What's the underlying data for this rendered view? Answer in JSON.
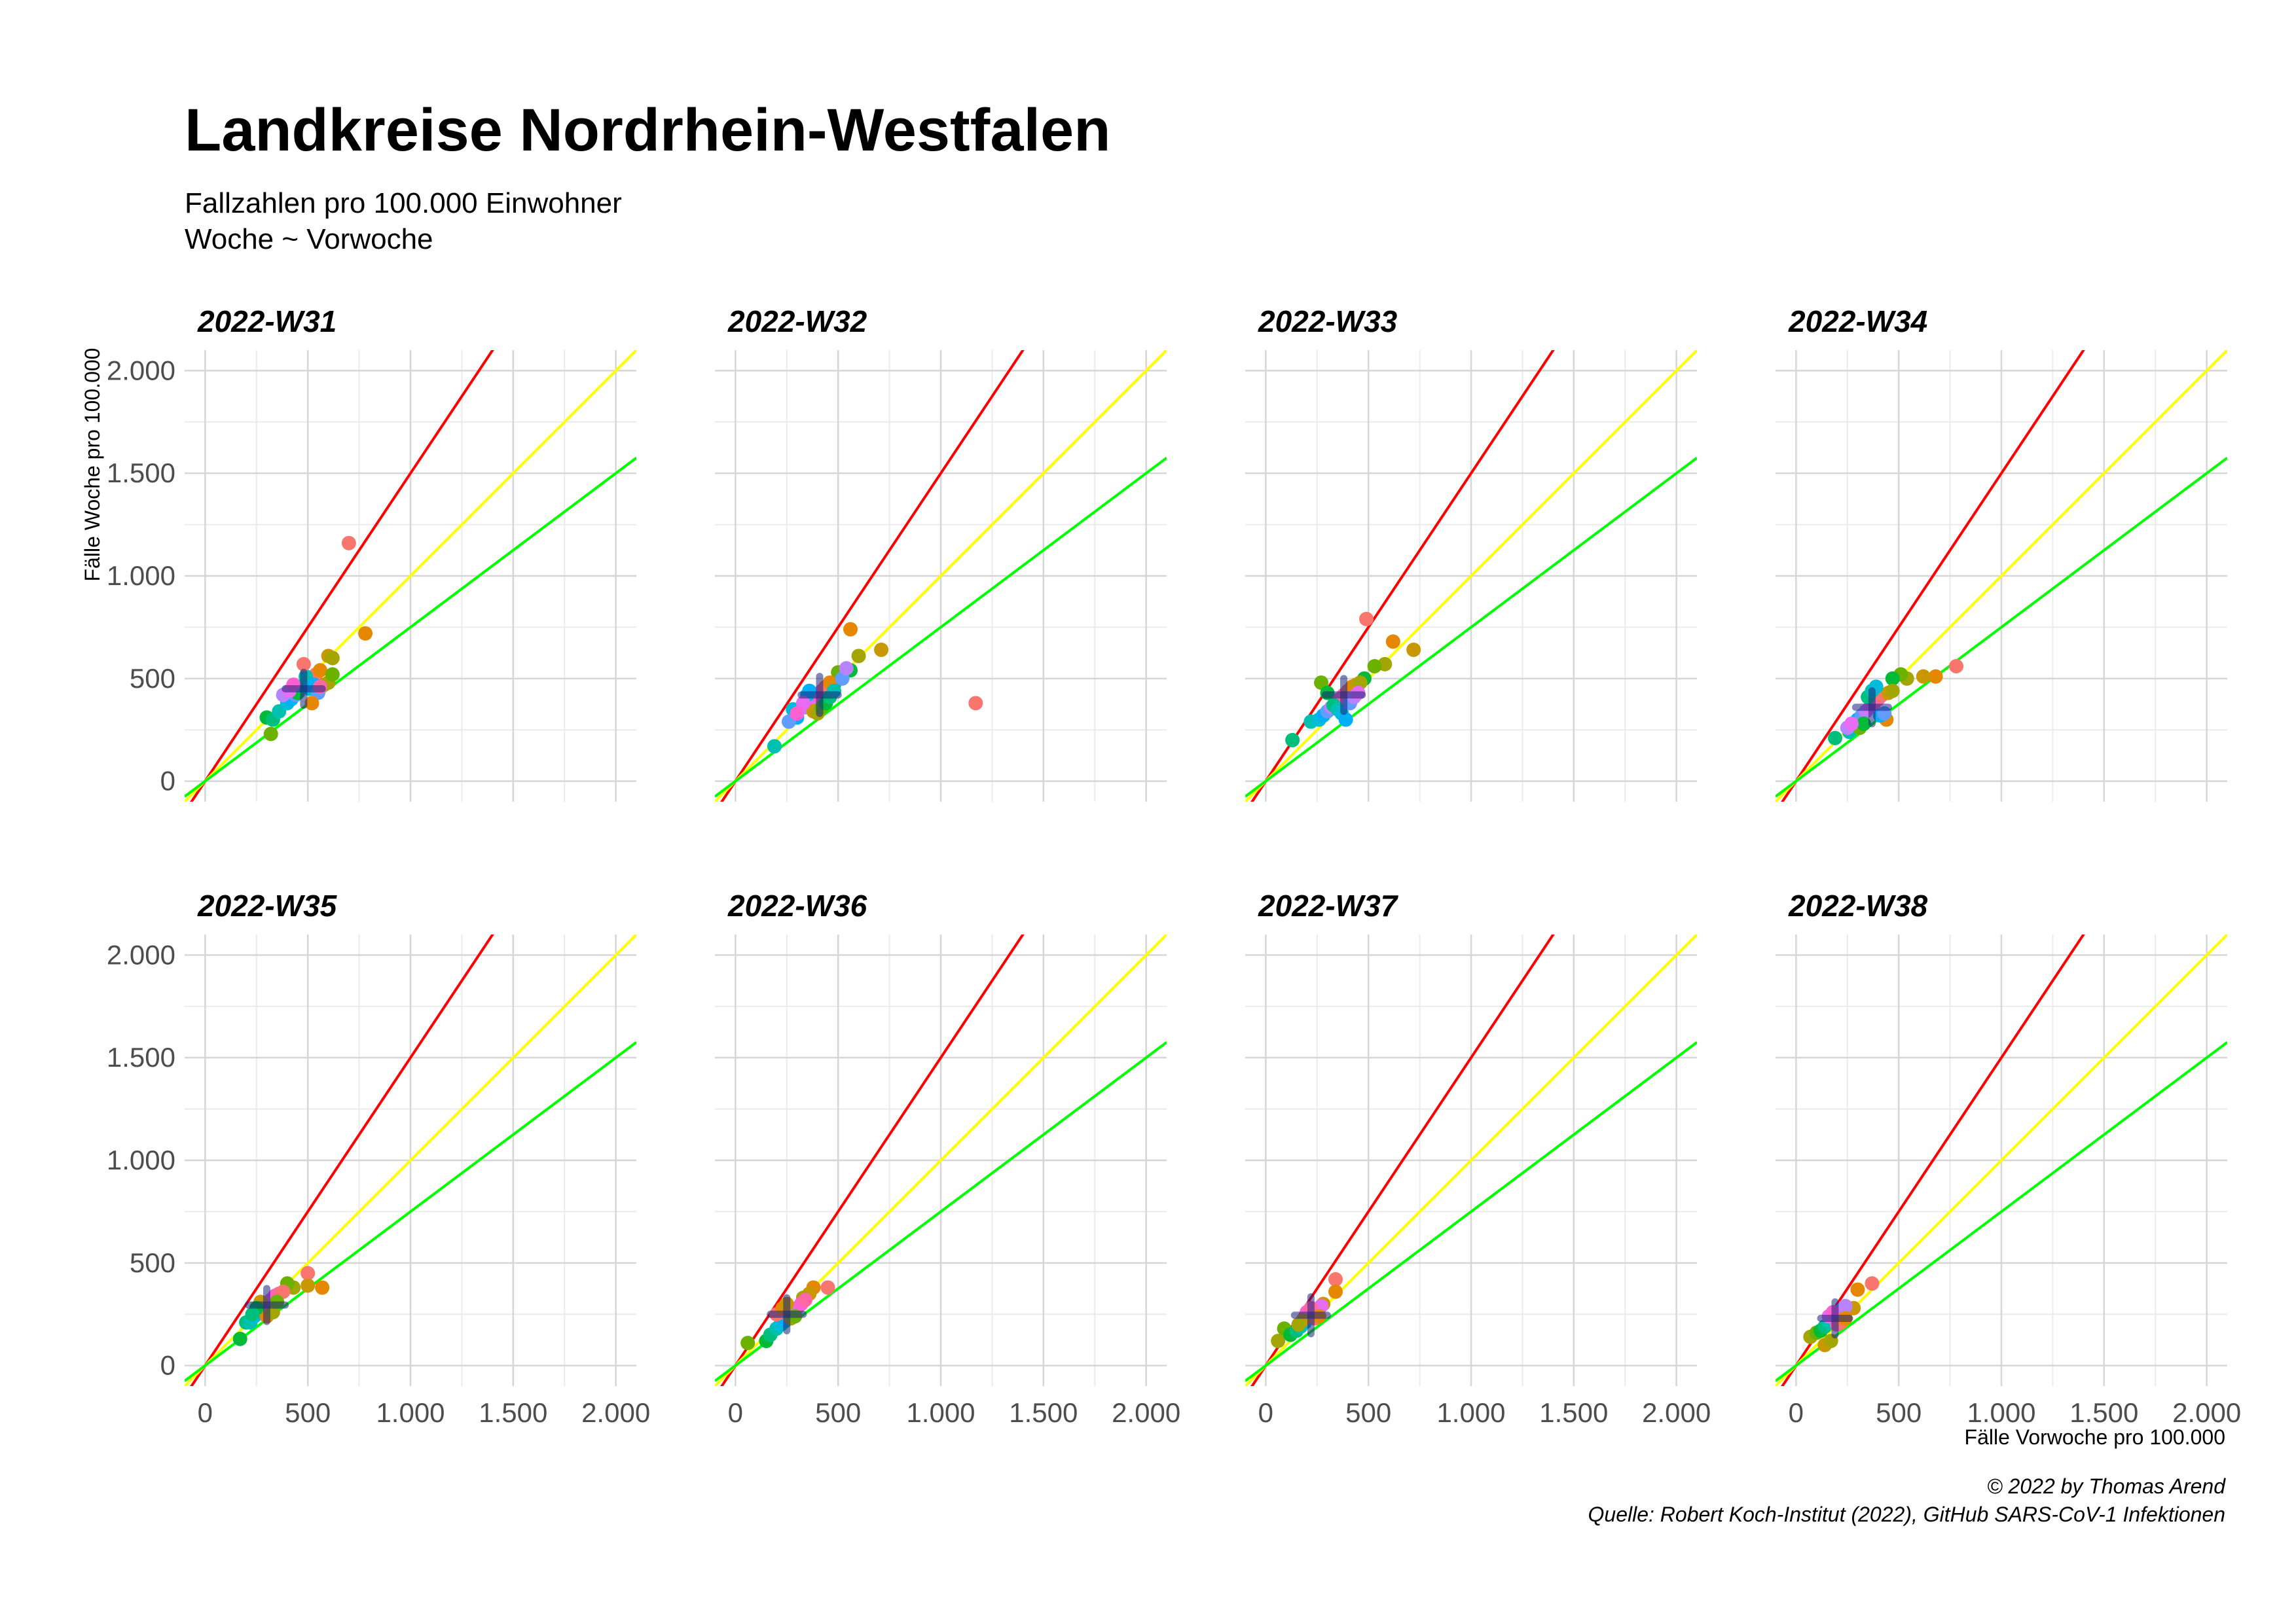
{
  "title": "Landkreise Nordrhein-Westfalen",
  "subtitle_line1": "Fallzahlen pro 100.000 Einwohner",
  "subtitle_line2": "Woche ~ Vorwoche",
  "caption_line1": "© 2022 by Thomas Arend",
  "caption_line2": "Quelle: Robert Koch-Institut (2022), GitHub SARS-CoV-1 Infektionen",
  "chart_data": {
    "type": "scatter",
    "xlabel": "Fälle Vorwoche pro 100.000",
    "ylabel": "Fälle Woche pro 100.000",
    "xlim": [
      -100,
      2100
    ],
    "ylim": [
      -100,
      2100
    ],
    "x_ticks": [
      0,
      500,
      1000,
      1500,
      2000
    ],
    "y_ticks": [
      0,
      500,
      1000,
      1500,
      2000
    ],
    "x_tick_labels": [
      "0",
      "500",
      "1.000",
      "1.500",
      "2.000"
    ],
    "y_tick_labels": [
      "0",
      "500",
      "1.000",
      "1.500",
      "2.000"
    ],
    "grid": true,
    "reference_lines": [
      {
        "slope": 1.5,
        "color": "#ff0000"
      },
      {
        "slope": 1.0,
        "color": "#ffff00"
      },
      {
        "slope": 0.75,
        "color": "#00ff00"
      }
    ],
    "point_colors": [
      "#f8766d",
      "#e58700",
      "#c99800",
      "#a3a500",
      "#6bb100",
      "#00ba38",
      "#00bf7d",
      "#00c0af",
      "#00bcd8",
      "#00b0f6",
      "#619cff",
      "#b983ff",
      "#e76bf3",
      "#fd61d1",
      "#ff67a4"
    ],
    "facets": [
      {
        "label": "2022-W31",
        "mean": [
          480,
          450
        ],
        "sd": [
          90,
          80
        ],
        "points": [
          [
            700,
            1160
          ],
          [
            780,
            720
          ],
          [
            600,
            610
          ],
          [
            620,
            600
          ],
          [
            320,
            230
          ],
          [
            300,
            310
          ],
          [
            330,
            300
          ],
          [
            360,
            340
          ],
          [
            400,
            380
          ],
          [
            420,
            400
          ],
          [
            440,
            420
          ],
          [
            460,
            440
          ],
          [
            480,
            470
          ],
          [
            500,
            480
          ],
          [
            520,
            500
          ],
          [
            540,
            520
          ],
          [
            560,
            540
          ],
          [
            580,
            470
          ],
          [
            600,
            480
          ],
          [
            620,
            520
          ],
          [
            450,
            430
          ],
          [
            470,
            460
          ],
          [
            490,
            510
          ],
          [
            510,
            450
          ],
          [
            530,
            470
          ],
          [
            550,
            430
          ],
          [
            380,
            420
          ],
          [
            410,
            440
          ],
          [
            430,
            470
          ],
          [
            560,
            460
          ],
          [
            480,
            570
          ],
          [
            520,
            380
          ]
        ]
      },
      {
        "label": "2022-W32",
        "mean": [
          410,
          420
        ],
        "sd": [
          90,
          90
        ],
        "points": [
          [
            1170,
            380
          ],
          [
            560,
            740
          ],
          [
            710,
            640
          ],
          [
            600,
            610
          ],
          [
            500,
            530
          ],
          [
            560,
            540
          ],
          [
            480,
            470
          ],
          [
            190,
            170
          ],
          [
            280,
            350
          ],
          [
            300,
            310
          ],
          [
            260,
            290
          ],
          [
            340,
            360
          ],
          [
            380,
            400
          ],
          [
            400,
            420
          ],
          [
            420,
            440
          ],
          [
            440,
            460
          ],
          [
            460,
            480
          ],
          [
            380,
            340
          ],
          [
            400,
            330
          ],
          [
            420,
            360
          ],
          [
            440,
            380
          ],
          [
            460,
            410
          ],
          [
            480,
            440
          ],
          [
            350,
            420
          ],
          [
            360,
            440
          ],
          [
            520,
            500
          ],
          [
            540,
            550
          ],
          [
            330,
            380
          ],
          [
            300,
            330
          ]
        ]
      },
      {
        "label": "2022-W33",
        "mean": [
          380,
          420
        ],
        "sd": [
          90,
          80
        ],
        "points": [
          [
            490,
            790
          ],
          [
            620,
            680
          ],
          [
            720,
            640
          ],
          [
            580,
            570
          ],
          [
            530,
            560
          ],
          [
            480,
            500
          ],
          [
            130,
            200
          ],
          [
            220,
            290
          ],
          [
            260,
            300
          ],
          [
            280,
            320
          ],
          [
            300,
            340
          ],
          [
            320,
            360
          ],
          [
            340,
            380
          ],
          [
            360,
            400
          ],
          [
            380,
            420
          ],
          [
            400,
            440
          ],
          [
            420,
            460
          ],
          [
            440,
            470
          ],
          [
            460,
            480
          ],
          [
            270,
            480
          ],
          [
            300,
            430
          ],
          [
            330,
            370
          ],
          [
            350,
            350
          ],
          [
            370,
            330
          ],
          [
            390,
            300
          ],
          [
            410,
            380
          ],
          [
            430,
            410
          ],
          [
            450,
            430
          ]
        ]
      },
      {
        "label": "2022-W34",
        "mean": [
          370,
          360
        ],
        "sd": [
          80,
          80
        ],
        "points": [
          [
            780,
            560
          ],
          [
            680,
            510
          ],
          [
            620,
            510
          ],
          [
            540,
            500
          ],
          [
            510,
            520
          ],
          [
            470,
            500
          ],
          [
            190,
            210
          ],
          [
            260,
            240
          ],
          [
            280,
            270
          ],
          [
            300,
            300
          ],
          [
            320,
            320
          ],
          [
            340,
            340
          ],
          [
            360,
            360
          ],
          [
            380,
            380
          ],
          [
            400,
            400
          ],
          [
            420,
            420
          ],
          [
            440,
            300
          ],
          [
            450,
            430
          ],
          [
            470,
            440
          ],
          [
            310,
            260
          ],
          [
            330,
            280
          ],
          [
            350,
            410
          ],
          [
            370,
            440
          ],
          [
            390,
            460
          ],
          [
            410,
            320
          ],
          [
            430,
            330
          ],
          [
            250,
            260
          ],
          [
            270,
            280
          ]
        ]
      },
      {
        "label": "2022-W35",
        "mean": [
          300,
          295
        ],
        "sd": [
          90,
          80
        ],
        "points": [
          [
            500,
            450
          ],
          [
            570,
            380
          ],
          [
            500,
            390
          ],
          [
            430,
            380
          ],
          [
            400,
            400
          ],
          [
            170,
            130
          ],
          [
            200,
            210
          ],
          [
            220,
            210
          ],
          [
            240,
            240
          ],
          [
            260,
            260
          ],
          [
            280,
            280
          ],
          [
            300,
            300
          ],
          [
            320,
            320
          ],
          [
            340,
            340
          ],
          [
            360,
            350
          ],
          [
            380,
            360
          ],
          [
            300,
            240
          ],
          [
            270,
            310
          ],
          [
            330,
            260
          ],
          [
            350,
            310
          ],
          [
            250,
            280
          ],
          [
            230,
            250
          ]
        ]
      },
      {
        "label": "2022-W36",
        "mean": [
          250,
          250
        ],
        "sd": [
          80,
          80
        ],
        "points": [
          [
            450,
            380
          ],
          [
            380,
            380
          ],
          [
            360,
            350
          ],
          [
            330,
            330
          ],
          [
            60,
            110
          ],
          [
            150,
            120
          ],
          [
            170,
            150
          ],
          [
            200,
            180
          ],
          [
            220,
            200
          ],
          [
            240,
            220
          ],
          [
            260,
            240
          ],
          [
            280,
            260
          ],
          [
            300,
            280
          ],
          [
            320,
            300
          ],
          [
            340,
            320
          ],
          [
            200,
            250
          ],
          [
            230,
            280
          ],
          [
            250,
            300
          ],
          [
            270,
            230
          ],
          [
            290,
            240
          ]
        ]
      },
      {
        "label": "2022-W37",
        "mean": [
          220,
          245
        ],
        "sd": [
          80,
          90
        ],
        "points": [
          [
            340,
            420
          ],
          [
            340,
            360
          ],
          [
            280,
            300
          ],
          [
            60,
            120
          ],
          [
            90,
            180
          ],
          [
            120,
            150
          ],
          [
            150,
            170
          ],
          [
            170,
            190
          ],
          [
            190,
            210
          ],
          [
            210,
            230
          ],
          [
            230,
            250
          ],
          [
            250,
            270
          ],
          [
            270,
            290
          ],
          [
            200,
            260
          ],
          [
            220,
            280
          ],
          [
            240,
            230
          ],
          [
            260,
            240
          ],
          [
            180,
            220
          ],
          [
            160,
            200
          ]
        ]
      },
      {
        "label": "2022-W38",
        "mean": [
          190,
          230
        ],
        "sd": [
          70,
          80
        ],
        "points": [
          [
            370,
            400
          ],
          [
            300,
            370
          ],
          [
            280,
            280
          ],
          [
            70,
            140
          ],
          [
            100,
            160
          ],
          [
            120,
            170
          ],
          [
            140,
            190
          ],
          [
            160,
            210
          ],
          [
            180,
            230
          ],
          [
            200,
            250
          ],
          [
            220,
            270
          ],
          [
            240,
            290
          ],
          [
            160,
            240
          ],
          [
            180,
            260
          ],
          [
            200,
            200
          ],
          [
            220,
            210
          ],
          [
            240,
            230
          ],
          [
            140,
            100
          ],
          [
            170,
            120
          ]
        ]
      }
    ]
  }
}
